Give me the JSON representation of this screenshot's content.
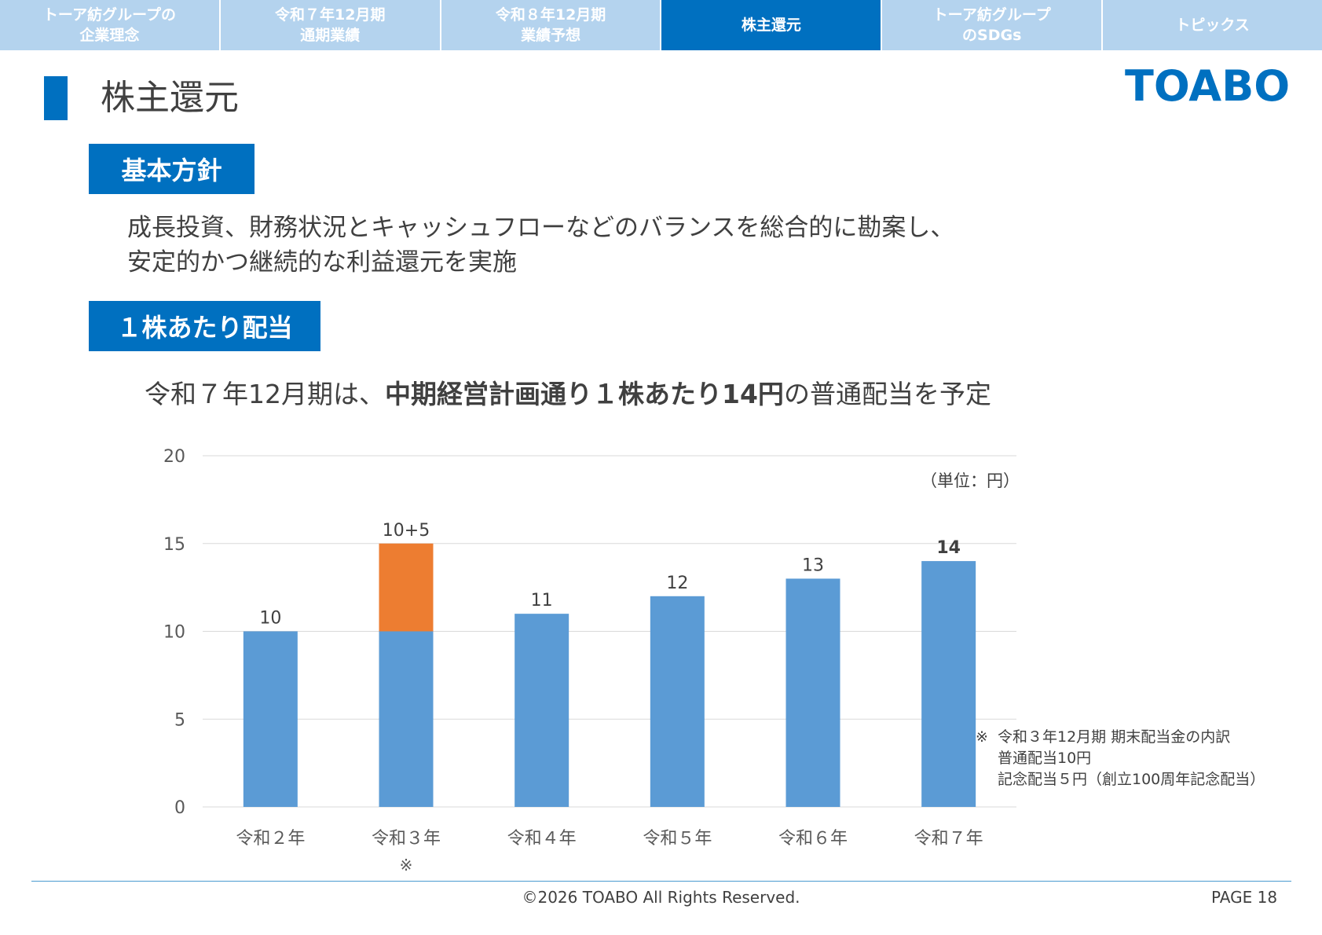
{
  "nav": {
    "tabs": [
      {
        "label": "トーア紡グループの\n企業理念",
        "active": false
      },
      {
        "label": "令和７年12月期\n通期業績",
        "active": false
      },
      {
        "label": "令和８年12月期\n業績予想",
        "active": false
      },
      {
        "label": "株主還元",
        "active": true
      },
      {
        "label": "トーア紡グループ\nのSDGs",
        "active": false
      },
      {
        "label": "トピックス",
        "active": false
      }
    ]
  },
  "page": {
    "title": "株主還元",
    "logo": "TOABO"
  },
  "policy": {
    "label": "基本方針",
    "line1": "成長投資、財務状況とキャッシュフローなどのバランスを総合的に勘案し、",
    "line2": "安定的かつ継続的な利益還元を実施"
  },
  "dividend": {
    "label": "１株あたり配当",
    "headline_pre": "令和７年12月期は、",
    "headline_bold": "中期経営計画通り１株あたり14円",
    "headline_post": "の普通配当を予定"
  },
  "chart_data": {
    "type": "bar",
    "stacked": true,
    "unit_label": "（単位：円）",
    "categories": [
      "令和２年",
      "令和３年",
      "令和４年",
      "令和５年",
      "令和６年",
      "令和７年"
    ],
    "category_marks": [
      "",
      "※",
      "",
      "",
      "",
      ""
    ],
    "series": [
      {
        "values": [
          10,
          10,
          11,
          12,
          13,
          14
        ],
        "color": "#5b9bd5"
      },
      {
        "values": [
          0,
          5,
          0,
          0,
          0,
          0
        ],
        "color": "#ed7d31"
      }
    ],
    "data_labels": [
      "10",
      "10+5",
      "11",
      "12",
      "13",
      "14"
    ],
    "bold_labels": [
      false,
      false,
      false,
      false,
      false,
      true
    ],
    "ylim": [
      0,
      20
    ],
    "yticks": [
      0,
      5,
      10,
      15,
      20
    ],
    "grid": true
  },
  "note": {
    "mark": "※",
    "line1": "令和３年12月期 期末配当金の内訳",
    "line2": "普通配当10円",
    "line3": "記念配当５円（創立100周年記念配当）"
  },
  "footer": {
    "copyright": "©2026 TOABO All Rights Reserved.",
    "page": "PAGE  18"
  }
}
